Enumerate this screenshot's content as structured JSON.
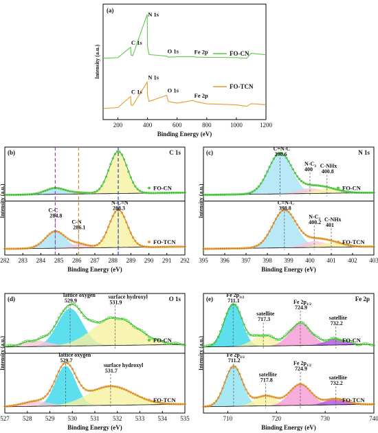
{
  "chart_data": [
    {
      "panel": "(a)",
      "type": "line",
      "xlabel": "Binding Energy (eV)",
      "ylabel": "Intensity (a.u.)",
      "xlim": [
        100,
        1200
      ],
      "xticks": [
        200,
        400,
        600,
        800,
        1000,
        1200
      ],
      "series": [
        {
          "name": "FO-CN",
          "color": "#5ec94a",
          "x": [
            100,
            200,
            285,
            290,
            300,
            398,
            400,
            410,
            530,
            540,
            600,
            711,
            720,
            800,
            900,
            1000,
            1070,
            1100,
            1200
          ],
          "y": [
            1.0,
            1.3,
            6.0,
            2.4,
            2.1,
            21.0,
            6.5,
            2.7,
            2.0,
            1.5,
            1.7,
            1.7,
            1.6,
            1.4,
            1.4,
            1.3,
            1.0,
            3.3,
            2.6
          ]
        },
        {
          "name": "FO-TCN",
          "color": "#e59b2c",
          "x": [
            100,
            200,
            285,
            290,
            300,
            398,
            400,
            410,
            530,
            540,
            600,
            711,
            720,
            800,
            900,
            1000,
            1070,
            1100,
            1200
          ],
          "y": [
            1.0,
            1.4,
            6.4,
            2.5,
            2.4,
            13.0,
            7.2,
            4.2,
            7.0,
            4.2,
            3.4,
            4.7,
            4.2,
            3.1,
            2.9,
            2.6,
            2.0,
            3.2,
            2.7
          ]
        }
      ],
      "peak_labels": [
        {
          "text": "C 1s",
          "x": 285,
          "series": "FO-CN"
        },
        {
          "text": "N 1s",
          "x": 398,
          "series": "FO-CN"
        },
        {
          "text": "O 1s",
          "x": 530,
          "series": "FO-CN"
        },
        {
          "text": "Fe 2p",
          "x": 711,
          "series": "FO-CN"
        },
        {
          "text": "C 1s",
          "x": 285,
          "series": "FO-TCN"
        },
        {
          "text": "N 1s",
          "x": 398,
          "series": "FO-TCN"
        },
        {
          "text": "O 1s",
          "x": 530,
          "series": "FO-TCN"
        },
        {
          "text": "Fe 2p",
          "x": 711,
          "series": "FO-TCN"
        }
      ]
    },
    {
      "panel": "(b)",
      "element": "C 1s",
      "type": "line",
      "xlabel": "Binding Energy (eV)",
      "ylabel": "Intensity (a.u.)",
      "xlim": [
        282,
        292
      ],
      "xticks": [
        282,
        283,
        284,
        285,
        286,
        287,
        288,
        289,
        290,
        291,
        292
      ],
      "vlines": [
        {
          "x": 284.8,
          "color": "#9b3fbf"
        },
        {
          "x": 286.1,
          "color": "#d98b1e"
        },
        {
          "x": 288.3,
          "color": "#2540c8"
        }
      ],
      "series": [
        {
          "name": "FO-CN",
          "color": "#4bd03a",
          "components": [
            {
              "center": 284.8,
              "height": 0.14,
              "width": 0.55,
              "fill": "#a8e3f5"
            },
            {
              "center": 286.1,
              "height": 0.03,
              "width": 0.5,
              "fill": "#f6c7d6"
            },
            {
              "center": 288.3,
              "height": 0.95,
              "width": 0.5,
              "fill": "#f6f1a0"
            }
          ],
          "peak_labels": []
        },
        {
          "name": "FO-TCN",
          "color": "#e59b2c",
          "components": [
            {
              "center": 284.8,
              "height": 0.38,
              "width": 0.55,
              "fill": "#a8e3f5"
            },
            {
              "center": 286.1,
              "height": 0.09,
              "width": 0.5,
              "fill": "#f6c7d6"
            },
            {
              "center": 288.3,
              "height": 0.85,
              "width": 0.5,
              "fill": "#f6f1a0"
            }
          ],
          "peak_labels": [
            {
              "text": "C-C",
              "value": "284.8",
              "x": 284.8
            },
            {
              "text": "C-N",
              "value": "286.1",
              "x": 286.1
            },
            {
              "text": "N-C=N",
              "value": "288.3",
              "x": 288.3
            }
          ]
        }
      ]
    },
    {
      "panel": "(c)",
      "element": "N 1s",
      "type": "line",
      "xlabel": "Binding Energy (eV)",
      "ylabel": "Intensity (a.u.)",
      "xlim": [
        395,
        403
      ],
      "xticks": [
        395,
        396,
        397,
        398,
        399,
        400,
        401,
        402,
        403
      ],
      "series": [
        {
          "name": "FO-CN",
          "color": "#4bd03a",
          "components": [
            {
              "center": 398.6,
              "height": 0.92,
              "width": 0.55,
              "fill": "#a8e3f5"
            },
            {
              "center": 400.0,
              "height": 0.12,
              "width": 0.55,
              "fill": "#f6c7d6"
            },
            {
              "center": 400.8,
              "height": 0.1,
              "width": 0.6,
              "fill": "#f6f1a0"
            }
          ],
          "peak_labels": [
            {
              "text": "C=N-C",
              "value": "398.6",
              "x": 398.6
            },
            {
              "text": "N-C3",
              "value": "400",
              "x": 400.0
            },
            {
              "text": "C-NHx",
              "value": "400.8",
              "x": 400.8
            }
          ]
        },
        {
          "name": "FO-TCN",
          "color": "#e59b2c",
          "components": [
            {
              "center": 398.8,
              "height": 0.85,
              "width": 0.55,
              "fill": "#a8e3f5"
            },
            {
              "center": 400.2,
              "height": 0.14,
              "width": 0.55,
              "fill": "#f6c7d6"
            },
            {
              "center": 401.0,
              "height": 0.1,
              "width": 0.6,
              "fill": "#f6f1a0"
            }
          ],
          "peak_labels": [
            {
              "text": "C=N-C",
              "value": "398.8",
              "x": 398.8
            },
            {
              "text": "N-C3",
              "value": "400.2",
              "x": 400.2
            },
            {
              "text": "C-NHx",
              "value": "401",
              "x": 401.0
            }
          ]
        }
      ]
    },
    {
      "panel": "(d)",
      "element": "O 1s",
      "type": "line",
      "xlabel": "Binding Energy (eV)",
      "ylabel": "Intensity (a.u.)",
      "xlim": [
        527,
        535
      ],
      "xticks": [
        527,
        528,
        529,
        530,
        531,
        532,
        533,
        534,
        535
      ],
      "series": [
        {
          "name": "FO-CN",
          "color": "#4bd03a",
          "components": [
            {
              "center": 529.9,
              "height": 0.75,
              "width": 0.55,
              "fill": "#35d7ea"
            },
            {
              "center": 531.9,
              "height": 0.55,
              "width": 1.0,
              "fill": "#f6f1a0"
            },
            {
              "center": 528.4,
              "height": 0.12,
              "width": 0.6,
              "fill": "#f6c7d6"
            }
          ],
          "peak_labels": [
            {
              "text": "lattice oxygen",
              "value": "529.9",
              "x": 529.9
            },
            {
              "text": "surface hydroxyl",
              "value": "531.9",
              "x": 531.9
            }
          ]
        },
        {
          "name": "FO-TCN",
          "color": "#e59b2c",
          "components": [
            {
              "center": 529.7,
              "height": 0.8,
              "width": 0.45,
              "fill": "#35d7ea"
            },
            {
              "center": 531.7,
              "height": 0.38,
              "width": 1.0,
              "fill": "#f6f1a0"
            },
            {
              "center": 528.4,
              "height": 0.1,
              "width": 0.6,
              "fill": "#f6c7d6"
            }
          ],
          "peak_labels": [
            {
              "text": "lattice oxygen",
              "value": "529.7",
              "x": 529.7
            },
            {
              "text": "surface hydroxyl",
              "value": "531.7",
              "x": 531.7
            }
          ]
        }
      ]
    },
    {
      "panel": "(e)",
      "element": "Fe 2p",
      "type": "line",
      "xlabel": "Binding Energy (eV)",
      "ylabel": "Intensity (a.u.)",
      "xlim": [
        705,
        740
      ],
      "xticks": [
        710,
        720,
        730,
        740
      ],
      "series": [
        {
          "name": "FO-CN",
          "color": "#4bd03a",
          "components": [
            {
              "center": 711.1,
              "height": 0.85,
              "width": 1.8,
              "fill": "#35d7ea"
            },
            {
              "center": 717.3,
              "height": 0.22,
              "width": 2.2,
              "fill": "#f6f1a0"
            },
            {
              "center": 724.9,
              "height": 0.45,
              "width": 2.2,
              "fill": "#f59ad7"
            },
            {
              "center": 732.2,
              "height": 0.12,
              "width": 2.2,
              "fill": "#b24fe0"
            }
          ],
          "peak_labels": [
            {
              "text": "Fe 2p3/2",
              "value": "711.1",
              "x": 711.1
            },
            {
              "text": "satellite",
              "value": "717.3",
              "x": 717.3
            },
            {
              "text": "Fe 2p1/2",
              "value": "724.9",
              "x": 724.9
            },
            {
              "text": "satellite",
              "value": "732.2",
              "x": 732.2
            }
          ]
        },
        {
          "name": "FO-TCN",
          "color": "#e59b2c",
          "components": [
            {
              "center": 711.2,
              "height": 0.8,
              "width": 1.8,
              "fill": "#8fe3f2"
            },
            {
              "center": 717.8,
              "height": 0.2,
              "width": 2.2,
              "fill": "#f6f1a0"
            },
            {
              "center": 724.9,
              "height": 0.42,
              "width": 2.2,
              "fill": "#f59ad7"
            },
            {
              "center": 732.2,
              "height": 0.12,
              "width": 2.2,
              "fill": "#b24fe0"
            }
          ],
          "peak_labels": [
            {
              "text": "Fe 2p3/2",
              "value": "711.2",
              "x": 711.2
            },
            {
              "text": "satellite",
              "value": "717.8",
              "x": 717.8
            },
            {
              "text": "Fe 2p1/2",
              "value": "724.9",
              "x": 724.9
            },
            {
              "text": "satellite",
              "value": "732.2",
              "x": 732.2
            }
          ]
        }
      ]
    }
  ]
}
